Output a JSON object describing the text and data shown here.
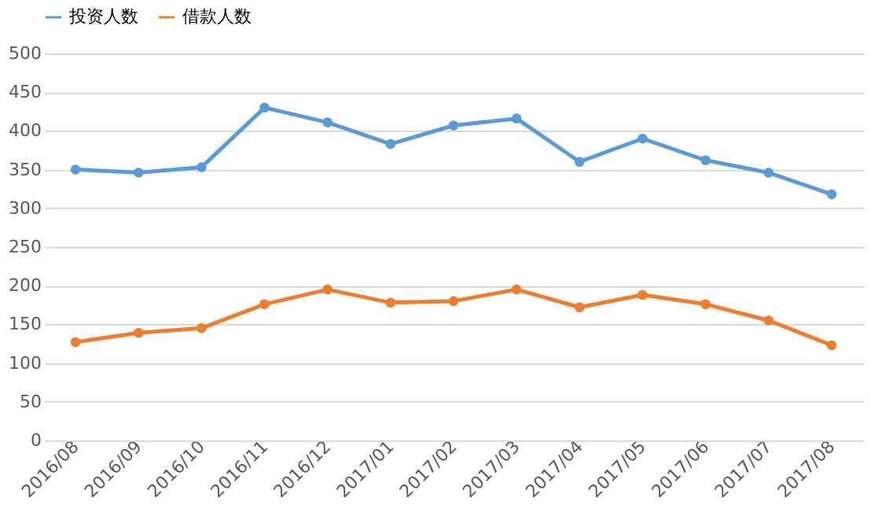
{
  "chart_data": {
    "type": "line",
    "categories": [
      "2016/08",
      "2016/09",
      "2016/10",
      "2016/11",
      "2016/12",
      "2017/01",
      "2017/02",
      "2017/03",
      "2017/04",
      "2017/05",
      "2017/06",
      "2017/07",
      "2017/08"
    ],
    "series": [
      {
        "name": "投资人数",
        "color": "#5b9bd5",
        "values": [
          350,
          346,
          353,
          430,
          411,
          383,
          407,
          416,
          360,
          390,
          362,
          346,
          318
        ]
      },
      {
        "name": "借款人数",
        "color": "#ed7d31",
        "values": [
          127,
          139,
          145,
          176,
          195,
          178,
          180,
          195,
          172,
          188,
          176,
          155,
          123
        ]
      }
    ],
    "ylim": [
      0,
      500
    ],
    "yticks": [
      0,
      50,
      100,
      150,
      200,
      250,
      300,
      350,
      400,
      450,
      500
    ],
    "grid": "y",
    "legend": "top",
    "marker": "circle",
    "line_style": "solid"
  }
}
